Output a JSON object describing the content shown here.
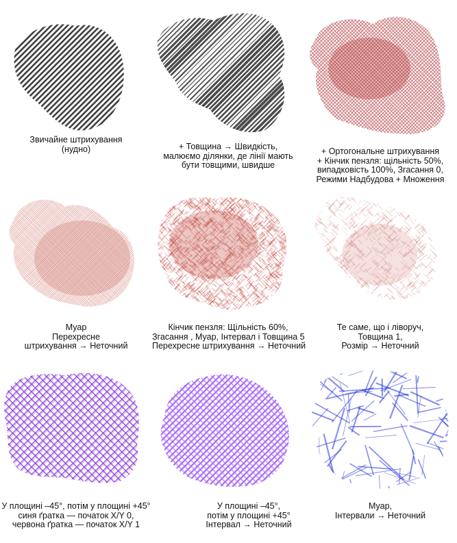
{
  "samples": [
    {
      "caption": [
        "Звичайне штрихування",
        "(нудно)"
      ],
      "style": "plain",
      "colors": [
        "#2a2a2a"
      ],
      "angle": -45
    },
    {
      "caption": [
        "+ Товщина → Швидкість,",
        "малюємо ділянки, де лінії мають",
        "бути товщими, швидше"
      ],
      "style": "speed",
      "colors": [
        "#2a2a2a"
      ],
      "angle": -45
    },
    {
      "caption": [
        "+ Ортогональне штрихування",
        "+ Кінчик пензля: щільність 50%,",
        "випадковість 100%, Згасання 0,",
        "Режими Надбудова + Множення"
      ],
      "style": "cross",
      "colors": [
        "#b2363a"
      ],
      "angle": -45
    },
    {
      "caption": [
        "Муар",
        "Перехресне",
        "штрихування → Неточний"
      ],
      "style": "moire-soft",
      "colors": [
        "#c4564a"
      ],
      "angle": -40
    },
    {
      "caption": [
        "Кінчик пензля: Щільність 60%,",
        "Згасання , Муар, Інтервал і Товщина 5",
        "Перехресне штрихування → Неточний"
      ],
      "style": "noise",
      "colors": [
        "#c0443c"
      ],
      "angle": -45
    },
    {
      "caption": [
        "Те саме, що і ліворуч,",
        "Товщина 1,",
        "Розмір → Неточний"
      ],
      "style": "noise-light",
      "colors": [
        "#c86a62"
      ],
      "angle": -45
    },
    {
      "caption": [
        "У площині –45°, потім у площині +45°",
        "синя ґратка — початок X/Y 0,",
        "червона ґратка — початок X/Y 1"
      ],
      "style": "grid",
      "colors": [
        "#7b3cf0",
        "#e0465a"
      ],
      "angle": -45
    },
    {
      "caption": [
        "У площині –45°,",
        "потім у площині +45°",
        "Інтервал → Неточний"
      ],
      "style": "grid-dense",
      "colors": [
        "#8a3cf0",
        "#b070ff"
      ],
      "angle": -45
    },
    {
      "caption": [
        "Муар,",
        "Інтервали → Неточний"
      ],
      "style": "strokes",
      "colors": [
        "#2838d8"
      ],
      "angle": -45
    }
  ]
}
